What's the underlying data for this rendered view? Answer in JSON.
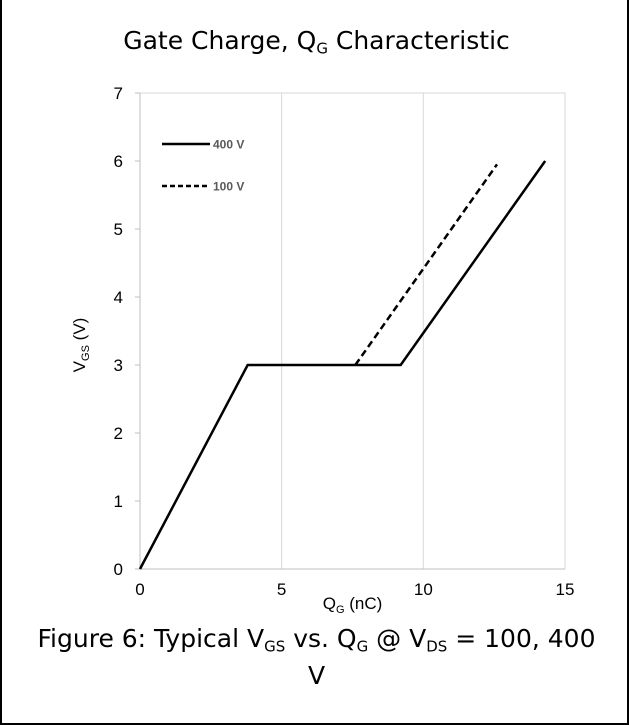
{
  "chart_data": {
    "type": "line",
    "title": {
      "main": "Gate Charge, Q",
      "sub": "G",
      "rest": " Characteristic"
    },
    "xlabel": {
      "main": "Q",
      "sub": "G",
      "unit": " (nC)"
    },
    "ylabel": {
      "main": "V",
      "sub": "GS",
      "unit": " (V)"
    },
    "xlim": [
      0,
      15
    ],
    "ylim": [
      0,
      7
    ],
    "xticks": [
      "0",
      "5",
      "10",
      "15"
    ],
    "xtick_values": [
      0,
      5,
      10,
      15
    ],
    "yticks": [
      "0",
      "1",
      "2",
      "3",
      "4",
      "5",
      "6",
      "7"
    ],
    "ytick_values": [
      0,
      1,
      2,
      3,
      4,
      5,
      6,
      7
    ],
    "grid": "vertical",
    "legend_position": "top-left",
    "series": [
      {
        "name": "400 V",
        "style": "solid",
        "color": "#000000",
        "x": [
          0,
          3.8,
          9.2,
          14.3
        ],
        "y": [
          0,
          3.0,
          3.0,
          6.0
        ]
      },
      {
        "name": "100 V",
        "style": "dashed",
        "color": "#000000",
        "x": [
          7.6,
          12.6
        ],
        "y": [
          3.0,
          5.95
        ]
      }
    ]
  },
  "caption": {
    "line1": [
      {
        "t": "Figure 6: Typical V"
      },
      {
        "t": "GS",
        "sub": true
      },
      {
        "t": " vs. Q"
      },
      {
        "t": "G",
        "sub": true
      },
      {
        "t": " @ V"
      },
      {
        "t": "DS",
        "sub": true
      },
      {
        "t": " = 100, 400"
      }
    ],
    "line2": "V"
  }
}
